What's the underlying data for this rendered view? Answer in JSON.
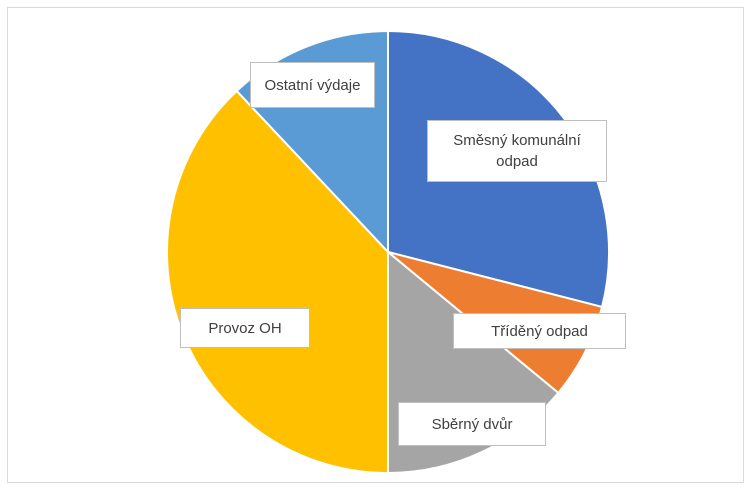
{
  "chart_data": {
    "type": "pie",
    "categories": [
      "Směsný komunální odpad",
      "Tříděný odpad",
      "Sběrný dvůr",
      "Provoz OH",
      "Ostatní výdaje"
    ],
    "values": [
      29,
      7,
      14,
      38,
      12
    ],
    "colors": [
      "#4472c4",
      "#ed7d31",
      "#a5a5a5",
      "#ffc000",
      "#5b9bd5"
    ]
  }
}
